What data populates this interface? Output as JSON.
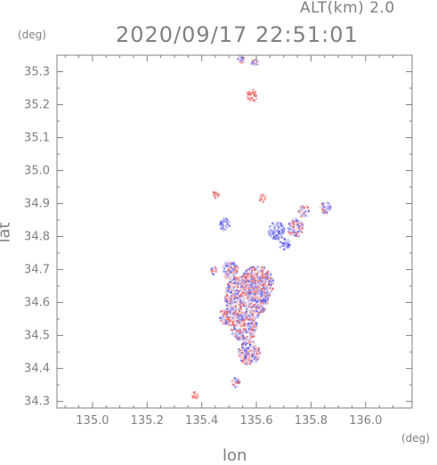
{
  "header": {
    "altitude_label": "ALT(km) 2.0",
    "timestamp": "2020/09/17 22:51:01",
    "y_unit": "(deg)",
    "x_unit": "(deg)"
  },
  "chart_data": {
    "type": "heatmap",
    "title": "2020/09/17 22:51:01",
    "subtitle": "ALT(km) 2.0",
    "xlabel": "lon",
    "ylabel": "lat",
    "xlim": [
      134.87,
      136.17
    ],
    "ylim": [
      34.28,
      35.35
    ],
    "x_ticks": [
      135.0,
      135.2,
      135.4,
      135.6,
      135.8,
      136.0
    ],
    "x_tick_labels": [
      "135.0",
      "135.2",
      "135.4",
      "135.6",
      "135.8",
      "136.0"
    ],
    "y_ticks": [
      34.3,
      34.4,
      34.5,
      34.6,
      34.7,
      34.8,
      34.9,
      35.0,
      35.1,
      35.2,
      35.3
    ],
    "y_tick_labels": [
      "34.3",
      "34.4",
      "34.5",
      "34.6",
      "34.7",
      "34.8",
      "34.9",
      "35.0",
      "35.1",
      "35.2",
      "35.3"
    ],
    "grid": false,
    "colors": {
      "positive": "#f08a8a",
      "negative": "#8a8af0",
      "frame": "#808080"
    },
    "clusters": [
      {
        "lon": 135.58,
        "lat": 35.23,
        "r": 0.02,
        "kind": "pos"
      },
      {
        "lon": 135.54,
        "lat": 35.34,
        "r": 0.01,
        "kind": "mix"
      },
      {
        "lon": 135.59,
        "lat": 35.33,
        "r": 0.01,
        "kind": "mix"
      },
      {
        "lon": 135.56,
        "lat": 34.62,
        "r": 0.08,
        "kind": "mix"
      },
      {
        "lon": 135.6,
        "lat": 34.66,
        "r": 0.06,
        "kind": "mix"
      },
      {
        "lon": 135.55,
        "lat": 34.53,
        "r": 0.05,
        "kind": "mix"
      },
      {
        "lon": 135.57,
        "lat": 34.45,
        "r": 0.04,
        "kind": "mix"
      },
      {
        "lon": 135.5,
        "lat": 34.7,
        "r": 0.03,
        "kind": "mix"
      },
      {
        "lon": 135.49,
        "lat": 34.56,
        "r": 0.03,
        "kind": "mix"
      },
      {
        "lon": 135.67,
        "lat": 34.82,
        "r": 0.03,
        "kind": "neg"
      },
      {
        "lon": 135.74,
        "lat": 34.83,
        "r": 0.03,
        "kind": "mix"
      },
      {
        "lon": 135.77,
        "lat": 34.88,
        "r": 0.02,
        "kind": "mix"
      },
      {
        "lon": 135.85,
        "lat": 34.89,
        "r": 0.02,
        "kind": "mix"
      },
      {
        "lon": 135.7,
        "lat": 34.78,
        "r": 0.02,
        "kind": "neg"
      },
      {
        "lon": 135.48,
        "lat": 34.84,
        "r": 0.02,
        "kind": "neg"
      },
      {
        "lon": 135.45,
        "lat": 34.93,
        "r": 0.01,
        "kind": "pos"
      },
      {
        "lon": 135.62,
        "lat": 34.92,
        "r": 0.01,
        "kind": "pos"
      },
      {
        "lon": 135.52,
        "lat": 34.36,
        "r": 0.015,
        "kind": "mix"
      },
      {
        "lon": 135.37,
        "lat": 34.32,
        "r": 0.01,
        "kind": "pos"
      },
      {
        "lon": 135.44,
        "lat": 34.7,
        "r": 0.01,
        "kind": "mix"
      }
    ]
  }
}
